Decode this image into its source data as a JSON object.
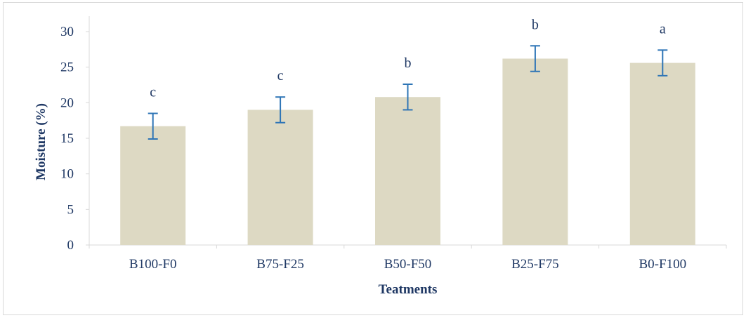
{
  "chart_data": {
    "type": "bar",
    "title": "",
    "xlabel": "Teatments",
    "ylabel": "Moisture  (%)",
    "categories": [
      "B100-F0",
      "B75-F25",
      "B50-F50",
      "B25-F75",
      "B0-F100"
    ],
    "values": [
      16.7,
      19.0,
      20.8,
      26.2,
      25.6
    ],
    "errors": [
      1.8,
      1.8,
      1.8,
      1.8,
      1.8
    ],
    "significance_letters": [
      "c",
      "c",
      "b",
      "b",
      "a"
    ],
    "ylim": [
      0,
      30
    ],
    "yticks": [
      "0",
      "5",
      "10",
      "15",
      "20",
      "25",
      "30"
    ],
    "grid": false,
    "legend": "none",
    "bar_color": "#ddd9c3",
    "error_bar_color": "#2e75b6",
    "axis_color": "#d9d9d9",
    "text_color": "#1f3864"
  }
}
